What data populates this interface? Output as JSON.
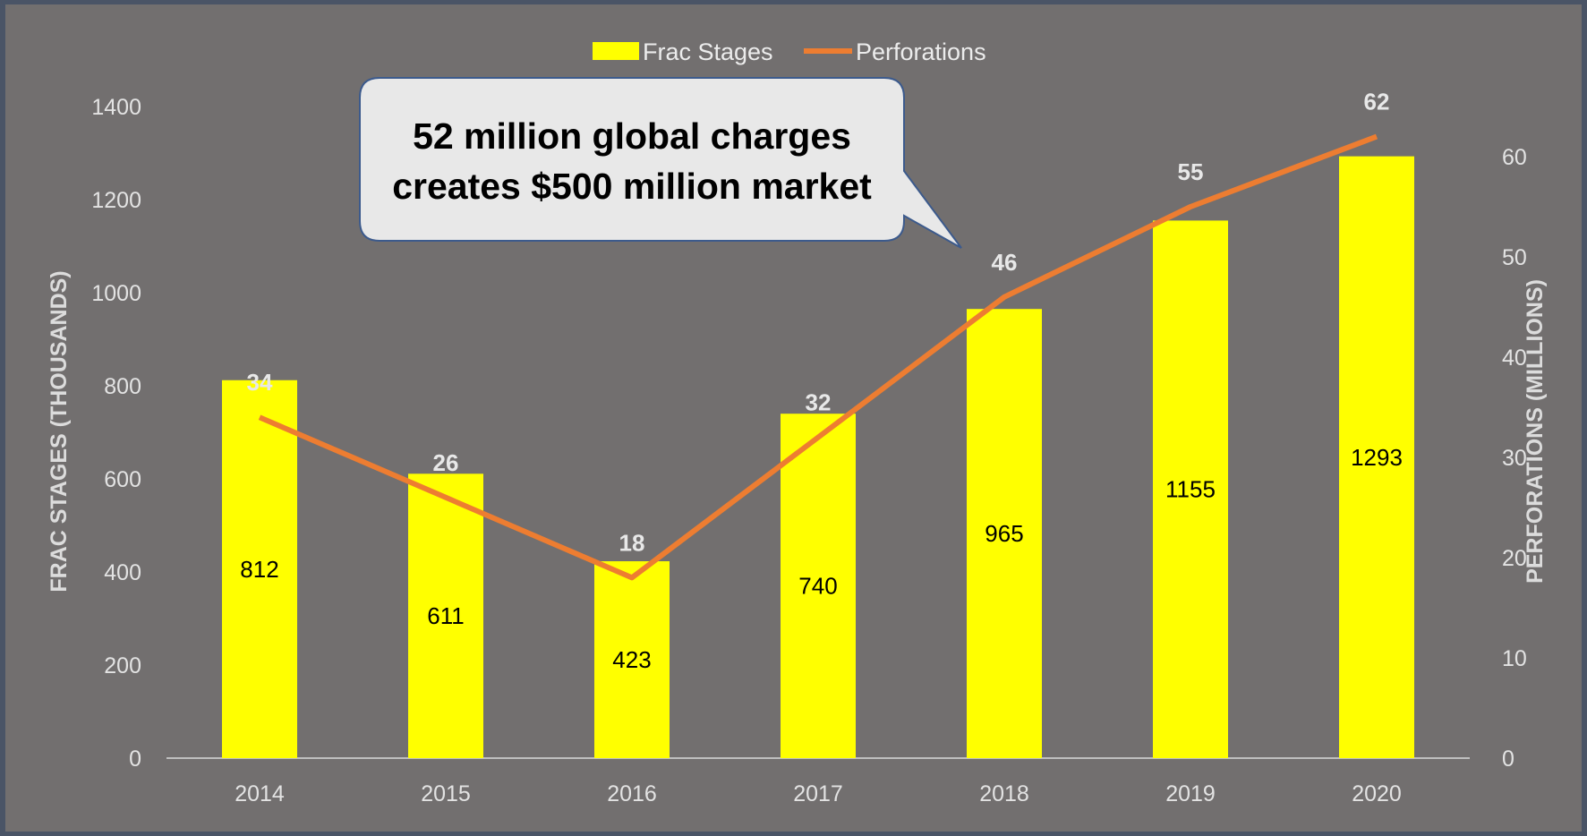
{
  "chart_data": {
    "type": "bar",
    "categories": [
      "2014",
      "2015",
      "2016",
      "2017",
      "2018",
      "2019",
      "2020"
    ],
    "series": [
      {
        "name": "Frac Stages",
        "type": "bar",
        "axis": "left",
        "color": "#ffff00",
        "values": [
          812,
          611,
          423,
          740,
          965,
          1155,
          1293
        ]
      },
      {
        "name": "Perforations",
        "type": "line",
        "axis": "right",
        "color": "#ed7d31",
        "values": [
          34,
          26,
          18,
          32,
          46,
          55,
          62
        ]
      }
    ],
    "ylabel": "FRAC STAGES (THOUSANDS)",
    "ylabel_right": "PERFORATIONS (MILLIONS)",
    "ylim": [
      0,
      1400
    ],
    "ylim_right": [
      0,
      65
    ],
    "yticks": [
      "0",
      "200",
      "400",
      "600",
      "800",
      "1000",
      "1200",
      "1400"
    ],
    "yticks_right": [
      "0",
      "10",
      "20",
      "30",
      "40",
      "50",
      "60"
    ],
    "legend": "top",
    "grid": false,
    "annotation": {
      "lines": [
        "52 million global charges",
        "creates $500 million market"
      ],
      "points_to": "2018"
    }
  }
}
